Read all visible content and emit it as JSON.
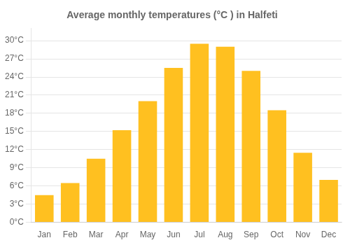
{
  "chart_data": {
    "type": "bar",
    "title": "Average monthly temperatures (°C ) in Halfeti",
    "categories": [
      "Jan",
      "Feb",
      "Mar",
      "Apr",
      "May",
      "Jun",
      "Jul",
      "Aug",
      "Sep",
      "Oct",
      "Nov",
      "Dec"
    ],
    "values": [
      4.5,
      6.5,
      10.5,
      15.2,
      20.0,
      25.5,
      29.5,
      29.0,
      25.0,
      18.5,
      11.5,
      7.0
    ],
    "color": "#FFC020",
    "ylim": [
      0,
      32
    ],
    "yticks": [
      {
        "value": 0,
        "label": "0°C"
      },
      {
        "value": 3,
        "label": "3°C"
      },
      {
        "value": 6,
        "label": "6°C"
      },
      {
        "value": 9,
        "label": "9°C"
      },
      {
        "value": 12,
        "label": "12°C"
      },
      {
        "value": 15,
        "label": "15°C"
      },
      {
        "value": 18,
        "label": "18°C"
      },
      {
        "value": 21,
        "label": "21°C"
      },
      {
        "value": 24,
        "label": "24°C"
      },
      {
        "value": 27,
        "label": "27°C"
      },
      {
        "value": 30,
        "label": "30°C"
      }
    ],
    "grid": true
  }
}
